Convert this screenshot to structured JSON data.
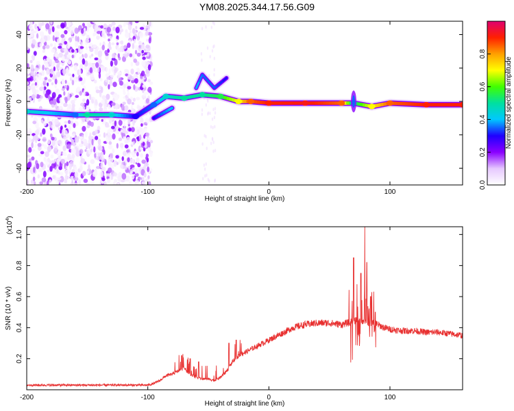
{
  "title": "YM08.2025.344.17.56.G09",
  "chart_data": [
    {
      "type": "heatmap",
      "title": "YM08.2025.344.17.56.G09",
      "xlabel": "Height of straight line (km)",
      "ylabel": "Frequency (Hz)",
      "xlim": [
        -200,
        160
      ],
      "ylim": [
        -50,
        48
      ],
      "xticks": [
        -200,
        -100,
        0,
        100
      ],
      "xtick_labels": [
        "-200",
        "-100",
        "0",
        "100"
      ],
      "yticks": [
        -40,
        -20,
        0,
        20,
        40
      ],
      "ytick_labels": [
        "-40",
        "-20",
        "0",
        "20",
        "40"
      ],
      "colorbar": {
        "label": "Normalized spectral amplitude",
        "range": [
          0,
          1
        ],
        "ticks": [
          0.0,
          0.2,
          0.4,
          0.6,
          0.8
        ],
        "tick_labels": [
          "0.0",
          "0.2",
          "0.4",
          "0.6",
          "0.8"
        ],
        "colormap": [
          "#ffffff",
          "#e6c8ff",
          "#8a00ff",
          "#1f00ff",
          "#00c8ff",
          "#00e0a0",
          "#40ff00",
          "#ffff00",
          "#ffa000",
          "#ff2000",
          "#e00070"
        ]
      },
      "main_ridge": [
        {
          "x": -200,
          "f": -6,
          "amp": 0.45
        },
        {
          "x": -160,
          "f": -8,
          "amp": 0.35
        },
        {
          "x": -150,
          "f": -8,
          "amp": 0.5
        },
        {
          "x": -130,
          "f": -8,
          "amp": 0.45
        },
        {
          "x": -110,
          "f": -9,
          "amp": 0.3
        },
        {
          "x": -95,
          "f": -2,
          "amp": 0.35
        },
        {
          "x": -85,
          "f": 3,
          "amp": 0.45
        },
        {
          "x": -70,
          "f": 2,
          "amp": 0.5
        },
        {
          "x": -55,
          "f": 4,
          "amp": 0.5
        },
        {
          "x": -40,
          "f": 3,
          "amp": 0.55
        },
        {
          "x": -25,
          "f": 0,
          "amp": 0.7
        },
        {
          "x": -15,
          "f": 0,
          "amp": 0.85
        },
        {
          "x": 0,
          "f": -1,
          "amp": 0.9
        },
        {
          "x": 30,
          "f": -1,
          "amp": 0.92
        },
        {
          "x": 60,
          "f": -1,
          "amp": 0.85
        },
        {
          "x": 70,
          "f": -1,
          "amp": 0.5
        },
        {
          "x": 85,
          "f": -3,
          "amp": 0.7
        },
        {
          "x": 100,
          "f": -1,
          "amp": 0.85
        },
        {
          "x": 130,
          "f": -2,
          "amp": 0.9
        },
        {
          "x": 160,
          "f": -2,
          "amp": 0.9
        }
      ],
      "secondary_ridges": [
        {
          "x": -95,
          "f": -10,
          "amp": 0.3
        },
        {
          "x": -80,
          "f": -4,
          "amp": 0.4
        },
        {
          "x": -60,
          "f": 8,
          "amp": 0.4
        },
        {
          "x": -55,
          "f": 16,
          "amp": 0.35
        },
        {
          "x": -45,
          "f": 8,
          "amp": 0.35
        },
        {
          "x": -35,
          "f": 14,
          "amp": 0.3
        }
      ],
      "noise_region_x": [
        -200,
        -97
      ]
    },
    {
      "type": "line",
      "xlabel": "Height of straight line (km)",
      "ylabel": "SNR (10 * v/v)",
      "y_multiplier_label": "(x10",
      "y_multiplier_exp": "4",
      "y_multiplier_close": ")",
      "xlim": [
        -200,
        160
      ],
      "ylim": [
        0,
        1.05
      ],
      "xticks": [
        -200,
        -100,
        0,
        100
      ],
      "xtick_labels": [
        "-200",
        "-100",
        "0",
        "100"
      ],
      "yticks": [
        0.2,
        0.4,
        0.6,
        0.8,
        1.0
      ],
      "ytick_labels": [
        "0.2",
        "0.4",
        "0.6",
        "0.8",
        "1.0"
      ],
      "series": [
        {
          "name": "SNR",
          "color": "#e83030",
          "x": [
            -200,
            -180,
            -160,
            -140,
            -120,
            -100,
            -95,
            -90,
            -85,
            -80,
            -75,
            -70,
            -65,
            -60,
            -55,
            -50,
            -45,
            -40,
            -35,
            -30,
            -25,
            -20,
            -15,
            -10,
            -5,
            0,
            10,
            20,
            30,
            40,
            50,
            60,
            65,
            70,
            75,
            80,
            85,
            90,
            95,
            100,
            110,
            120,
            130,
            140,
            150,
            160
          ],
          "values": [
            0.03,
            0.03,
            0.03,
            0.03,
            0.03,
            0.03,
            0.04,
            0.06,
            0.09,
            0.1,
            0.12,
            0.14,
            0.1,
            0.08,
            0.07,
            0.07,
            0.06,
            0.08,
            0.12,
            0.18,
            0.22,
            0.24,
            0.26,
            0.28,
            0.3,
            0.32,
            0.36,
            0.4,
            0.42,
            0.43,
            0.43,
            0.42,
            0.43,
            0.44,
            0.45,
            0.44,
            0.43,
            0.42,
            0.4,
            0.39,
            0.38,
            0.38,
            0.37,
            0.37,
            0.36,
            0.35
          ]
        }
      ],
      "spikes": [
        {
          "x": -72,
          "peak": 0.22
        },
        {
          "x": -65,
          "peak": 0.2
        },
        {
          "x": -58,
          "peak": 0.18
        },
        {
          "x": -33,
          "peak": 0.3
        },
        {
          "x": -27,
          "peak": 0.32
        },
        {
          "x": 70,
          "peak": 0.85
        },
        {
          "x": 73,
          "peak": 0.68
        },
        {
          "x": 76,
          "peak": 0.75
        },
        {
          "x": 79,
          "peak": 1.05
        },
        {
          "x": 81,
          "peak": 0.82
        },
        {
          "x": 84,
          "peak": 0.6
        },
        {
          "x": 88,
          "peak": 0.5
        }
      ]
    }
  ]
}
